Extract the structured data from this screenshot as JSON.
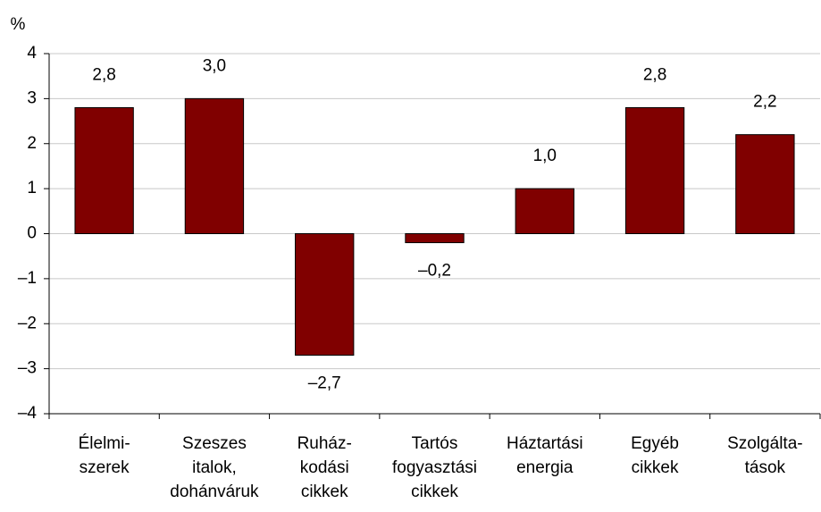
{
  "chart_data": {
    "type": "bar",
    "y_label": "%",
    "categories": [
      [
        "Élelmi-",
        "szerek"
      ],
      [
        "Szeszes",
        "italok,",
        "dohánváruk"
      ],
      [
        "Ruház-",
        "kodási",
        "cikkek"
      ],
      [
        "Tartós",
        "fogyasztási",
        "cikkek"
      ],
      [
        "Háztartási",
        "energia"
      ],
      [
        "Egyéb",
        "cikkek"
      ],
      [
        "Szolgálta-",
        "tások"
      ]
    ],
    "values": [
      2.8,
      3.0,
      -2.7,
      -0.2,
      1.0,
      2.8,
      2.2
    ],
    "value_labels": [
      "2,8",
      "3,0",
      "–2,7",
      "–0,2",
      "1,0",
      "2,8",
      "2,2"
    ],
    "color": "#800000",
    "ylim": [
      -4,
      4
    ],
    "yticks": [
      {
        "value": -4,
        "label": "–4"
      },
      {
        "value": -3,
        "label": "–3"
      },
      {
        "value": -2,
        "label": "–2"
      },
      {
        "value": -1,
        "label": "–1"
      },
      0,
      1,
      2,
      3,
      4
    ],
    "grid": true
  }
}
